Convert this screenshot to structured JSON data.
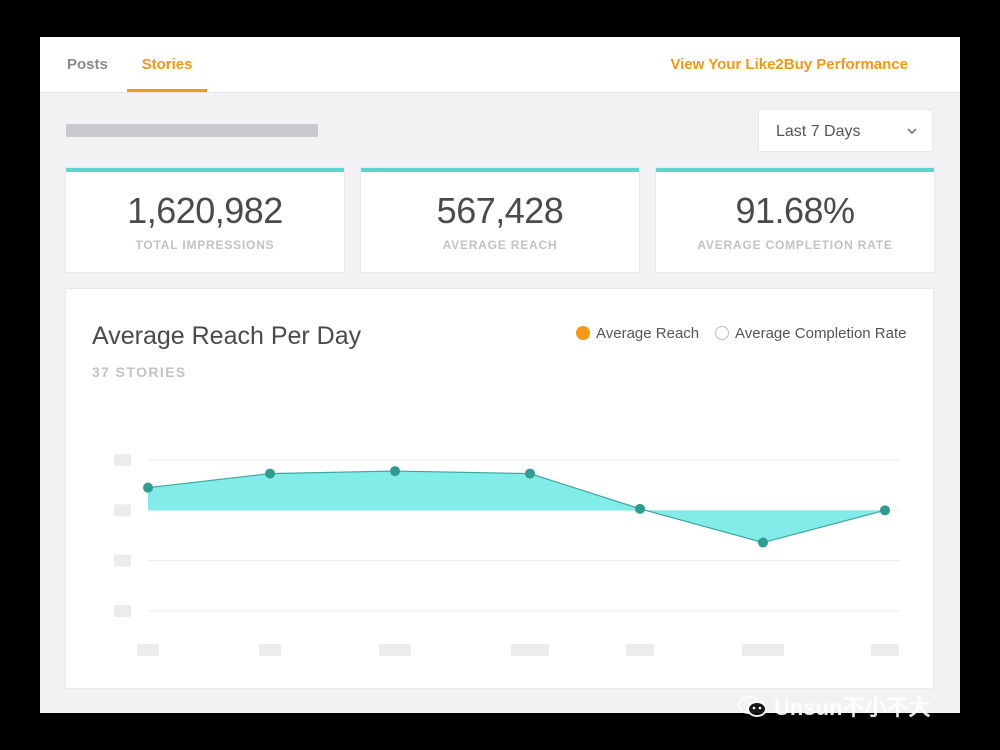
{
  "nav": {
    "tabs": [
      {
        "label": "Posts",
        "active": false
      },
      {
        "label": "Stories",
        "active": true
      }
    ],
    "performance_link": "View Your Like2Buy Performance"
  },
  "filter": {
    "selected": "Last 7 Days",
    "icon": "chevron-down-icon"
  },
  "stats": [
    {
      "value": "1,620,982",
      "label": "TOTAL IMPRESSIONS"
    },
    {
      "value": "567,428",
      "label": "AVERAGE REACH"
    },
    {
      "value": "91.68%",
      "label": "AVERAGE COMPLETION RATE"
    }
  ],
  "panel": {
    "title": "Average Reach Per Day",
    "subtitle": "37 STORIES",
    "legend": [
      {
        "label": "Average Reach",
        "selected": true,
        "color": "#f39a12"
      },
      {
        "label": "Average Completion Rate",
        "selected": false
      }
    ]
  },
  "chart_data": {
    "type": "area",
    "title": "Average Reach Per Day",
    "series": [
      {
        "name": "Average Reach",
        "values": [
          1.45,
          1.73,
          1.78,
          1.73,
          1.03,
          0.36,
          1.0
        ]
      }
    ],
    "baseline": 1.0,
    "ylim": [
      -1,
      2
    ],
    "gridlines": [
      2,
      1,
      0,
      -1
    ],
    "tick_labels_hidden": true,
    "colors": {
      "fill": "#82ece8",
      "line": "#3aa69c",
      "point": "#2f9c92"
    }
  },
  "watermark": {
    "text": "Unsun不小不大"
  }
}
